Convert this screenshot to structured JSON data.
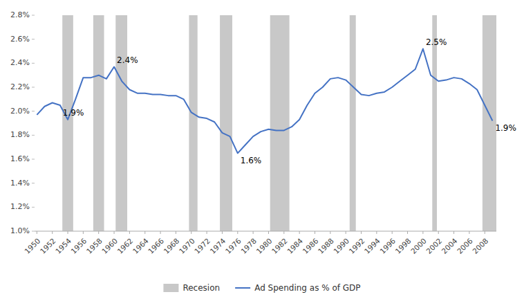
{
  "chart_data": {
    "type": "line",
    "x": [
      1950,
      1951,
      1952,
      1953,
      1954,
      1955,
      1956,
      1957,
      1958,
      1959,
      1960,
      1961,
      1962,
      1963,
      1964,
      1965,
      1966,
      1967,
      1968,
      1969,
      1970,
      1971,
      1972,
      1973,
      1974,
      1975,
      1976,
      1977,
      1978,
      1979,
      1980,
      1981,
      1982,
      1983,
      1984,
      1985,
      1986,
      1987,
      1988,
      1989,
      1990,
      1991,
      1992,
      1993,
      1994,
      1995,
      1996,
      1997,
      1998,
      1999,
      2000,
      2001,
      2002,
      2003,
      2004,
      2005,
      2006,
      2007,
      2008,
      2009
    ],
    "series": [
      {
        "name": "Ad Spending as % of GDP",
        "color": "#4472c4",
        "values": [
          1.97,
          2.04,
          2.07,
          2.05,
          1.93,
          2.1,
          2.28,
          2.28,
          2.3,
          2.27,
          2.37,
          2.25,
          2.18,
          2.15,
          2.15,
          2.14,
          2.14,
          2.13,
          2.13,
          2.1,
          1.99,
          1.95,
          1.94,
          1.91,
          1.82,
          1.79,
          1.65,
          1.72,
          1.79,
          1.83,
          1.85,
          1.84,
          1.84,
          1.87,
          1.93,
          2.05,
          2.15,
          2.2,
          2.27,
          2.28,
          2.26,
          2.2,
          2.14,
          2.13,
          2.15,
          2.16,
          2.2,
          2.25,
          2.3,
          2.35,
          2.52,
          2.3,
          2.25,
          2.26,
          2.28,
          2.27,
          2.23,
          2.18,
          2.05,
          1.92
        ]
      }
    ],
    "shaded_periods": {
      "name": "Recesion",
      "color": "#c8c8c8",
      "ranges": [
        [
          1953.3,
          1954.7
        ],
        [
          1957.3,
          1958.7
        ],
        [
          1960.2,
          1961.7
        ],
        [
          1969.7,
          1970.8
        ],
        [
          1973.7,
          1975.3
        ],
        [
          1980.2,
          1982.7
        ],
        [
          1990.5,
          1991.3
        ],
        [
          2001.2,
          2001.8
        ],
        [
          2007.7,
          2009.5
        ]
      ]
    },
    "annotations": [
      {
        "text": "1.9%",
        "x": 1953,
        "y": 1.93
      },
      {
        "text": "2.4%",
        "x": 1960,
        "y": 2.37
      },
      {
        "text": "1.6%",
        "x": 1976,
        "y": 1.65
      },
      {
        "text": "2.5%",
        "x": 2000,
        "y": 2.52
      },
      {
        "text": "1.9%",
        "x": 2009,
        "y": 1.92
      }
    ],
    "xlim": [
      1949.7,
      2009.5
    ],
    "xticks": [
      1950,
      1952,
      1954,
      1956,
      1958,
      1960,
      1962,
      1964,
      1966,
      1968,
      1970,
      1972,
      1974,
      1976,
      1978,
      1980,
      1982,
      1984,
      1986,
      1988,
      1990,
      1992,
      1994,
      1996,
      1998,
      2000,
      2002,
      2004,
      2006,
      2008
    ],
    "ylim": [
      1.0,
      2.8
    ],
    "yticks": [
      {
        "value": 1.0,
        "label": "1.0%"
      },
      {
        "value": 1.2,
        "label": "1.2%"
      },
      {
        "value": 1.4,
        "label": "1.4%"
      },
      {
        "value": 1.6,
        "label": "1.6%"
      },
      {
        "value": 1.8,
        "label": "1.8%"
      },
      {
        "value": 2.0,
        "label": "2.0%"
      },
      {
        "value": 2.2,
        "label": "2.2%"
      },
      {
        "value": 2.4,
        "label": "2.4%"
      },
      {
        "value": 2.6,
        "label": "2.6%"
      },
      {
        "value": 2.8,
        "label": "2.8%"
      }
    ],
    "grid": false,
    "legend": "bottom"
  }
}
